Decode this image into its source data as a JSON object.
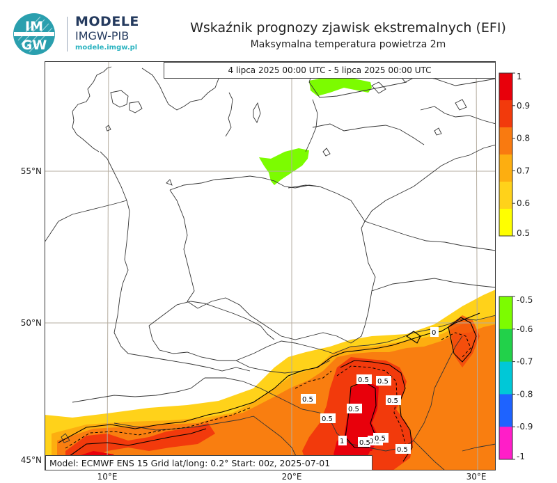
{
  "brand": {
    "logo_text_top": "IM",
    "logo_text_bottom": "GW",
    "name": "MODELE",
    "org": "IMGW-PIB",
    "url": "modele.imgw.pl"
  },
  "title": "Wskaźnik prognozy zjawisk ekstremalnych (EFI)",
  "subtitle": "Maksymalna temperatura powietrza 2m",
  "period": "4 lipca 2025 00:00 UTC - 5 lipca 2025 00:00 UTC",
  "model_info": "Model: ECMWF  ENS 15  Grid lat/long: 0.2°  Start: 00z, 2025-07-01",
  "map": {
    "lat_labels": [
      "55°N",
      "50°N",
      "45°N"
    ],
    "lon_labels": [
      "10°E",
      "20°E",
      "30°E"
    ],
    "contour_labels": [
      "0.5",
      "0.5",
      "0.5",
      "0.5",
      "0.5",
      "0.5",
      "0.5",
      "0.5",
      "1",
      "0.5",
      "0.5",
      "0"
    ]
  },
  "colorbar_positive": {
    "labels": [
      "1",
      "0.9",
      "0.8",
      "0.7",
      "0.6",
      "0.5"
    ],
    "colors": [
      "#e8000b",
      "#f23a0c",
      "#f97a10",
      "#fdae10",
      "#ffd21a",
      "#ffff00"
    ]
  },
  "colorbar_negative": {
    "labels": [
      "-0.5",
      "-0.6",
      "-0.7",
      "-0.8",
      "-0.9",
      "-1"
    ],
    "colors": [
      "#7cfc00",
      "#22d14a",
      "#00c8d7",
      "#1e63ff",
      "#ff1ec8"
    ]
  }
}
